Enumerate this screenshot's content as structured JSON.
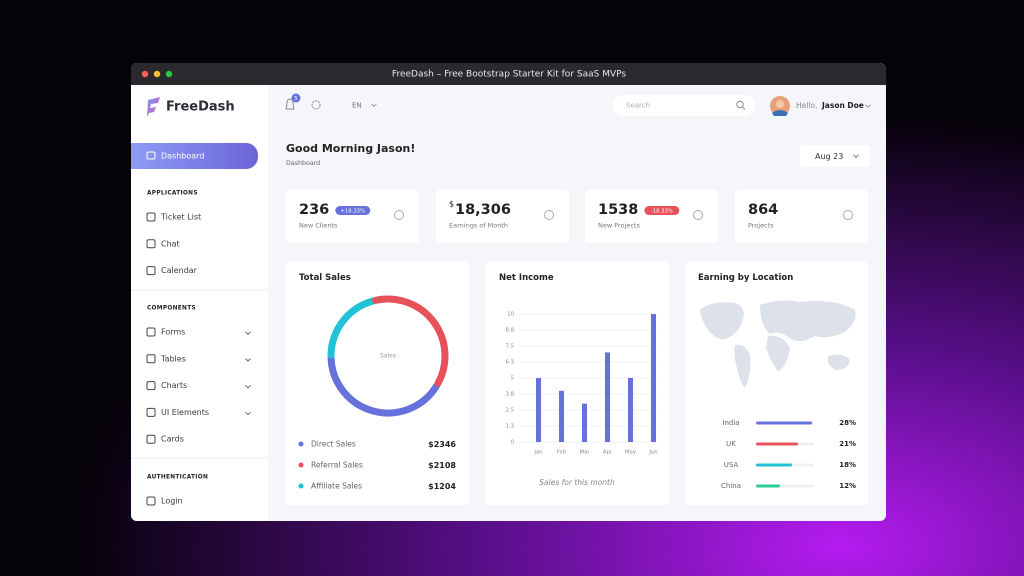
{
  "window": {
    "title": "FreeDash – Free Bootstrap Starter Kit for SaaS MVPs"
  },
  "sidebar": {
    "brand": "FreeDash",
    "active": "Dashboard",
    "sections": [
      {
        "heading": "APPLICATIONS",
        "items": [
          "Ticket List",
          "Chat",
          "Calendar"
        ]
      },
      {
        "heading": "COMPONENTS",
        "items": [
          "Forms",
          "Tables",
          "Charts",
          "UI Elements",
          "Cards"
        ]
      },
      {
        "heading": "AUTHENTICATION",
        "items": [
          "Login"
        ]
      }
    ]
  },
  "topbar": {
    "notifications": "5",
    "language": "EN",
    "search_placeholder": "Search",
    "greeting": "Hello,",
    "user": "Jason Doe"
  },
  "header": {
    "title": "Good Morning Jason!",
    "subtitle": "Dashboard",
    "date": "Aug 23"
  },
  "stats": [
    {
      "value": "236",
      "badge": "+18.33%",
      "badge_color": "#6771dc",
      "label": "New Clients"
    },
    {
      "prefix": "$",
      "value": "18,306",
      "label": "Earnings of Month"
    },
    {
      "value": "1538",
      "badge": "-18.33%",
      "badge_color": "#e7515a",
      "label": "New Projects"
    },
    {
      "value": "864",
      "label": "Projects"
    }
  ],
  "total_sales": {
    "title": "Total Sales",
    "center_label": "Sales",
    "items": [
      {
        "name": "Direct Sales",
        "value": 2346,
        "value_label": "$2346",
        "color": "#6771dc"
      },
      {
        "name": "Referral Sales",
        "value": 2108,
        "value_label": "$2108",
        "color": "#e7515a"
      },
      {
        "name": "Affiliate Sales",
        "value": 1204,
        "value_label": "$1204",
        "color": "#21c1d6"
      }
    ]
  },
  "net_income": {
    "title": "Net Income",
    "categories": [
      "Jan",
      "Feb",
      "Mar",
      "Apr",
      "May",
      "Jun"
    ],
    "values": [
      5,
      4,
      3,
      7,
      5,
      10
    ],
    "color": "#6771dc",
    "ylim": [
      0,
      10
    ],
    "yticks": [
      0,
      {
        "value": 1.25,
        "label": "1.3"
      },
      2.5,
      {
        "value": 3.75,
        "label": "3.8"
      },
      5,
      {
        "value": 6.25,
        "label": "6.3"
      },
      7.5,
      {
        "value": 8.75,
        "label": "8.8"
      },
      10
    ],
    "caption": "Sales for this month"
  },
  "earning_by_location": {
    "title": "Earning by Location",
    "rows": [
      {
        "name": "India",
        "value": 28,
        "value_label": "28%",
        "color": "#6771dc"
      },
      {
        "name": "UK",
        "value": 21,
        "value_label": "21%",
        "color": "#e7515a"
      },
      {
        "name": "USA",
        "value": 18,
        "value_label": "18%",
        "color": "#21c1d6"
      },
      {
        "name": "China",
        "value": 12,
        "value_label": "12%",
        "color": "#2ecc8e"
      }
    ]
  }
}
